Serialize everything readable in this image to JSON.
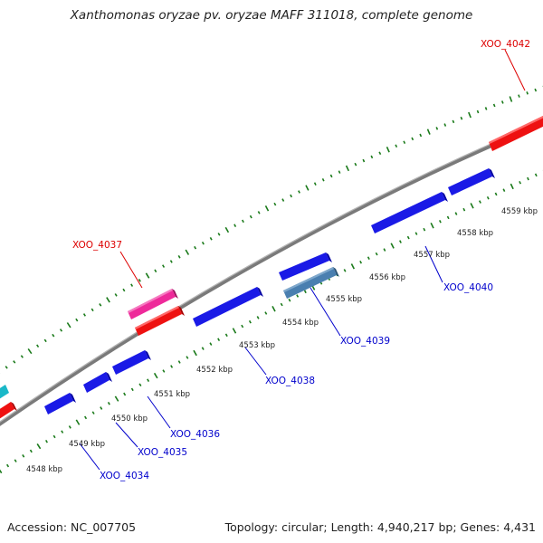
{
  "title": "Xanthomonas oryzae pv. oryzae MAFF 311018, complete genome",
  "accession": "Accession: NC_007705",
  "summary": "Topology: circular; Length: 4,940,217 bp; Genes: 4,431",
  "colors": {
    "backbone": "#7a7a7a",
    "tick": "#1a7a1a",
    "forward_gene": "#ee1111",
    "forward_gene_alt": "#ee2a9a",
    "reverse_gene": "#1a1ae6",
    "reverse_gene_alt": "#4a7fb0",
    "cyan_gene": "#1ab8c8",
    "forward_label": "#dd0000",
    "reverse_label": "#0000cc"
  },
  "scale_labels": [
    "4548 kbp",
    "4549 kbp",
    "4550 kbp",
    "4551 kbp",
    "4552 kbp",
    "4553 kbp",
    "4554 kbp",
    "4555 kbp",
    "4556 kbp",
    "4557 kbp",
    "4558 kbp",
    "4559 kbp"
  ],
  "gene_labels": {
    "forward": [
      "XOO_4037",
      "XOO_4042"
    ],
    "reverse": [
      "XOO_4034",
      "XOO_4035",
      "XOO_4036",
      "XOO_4038",
      "XOO_4039",
      "XOO_4040"
    ]
  }
}
